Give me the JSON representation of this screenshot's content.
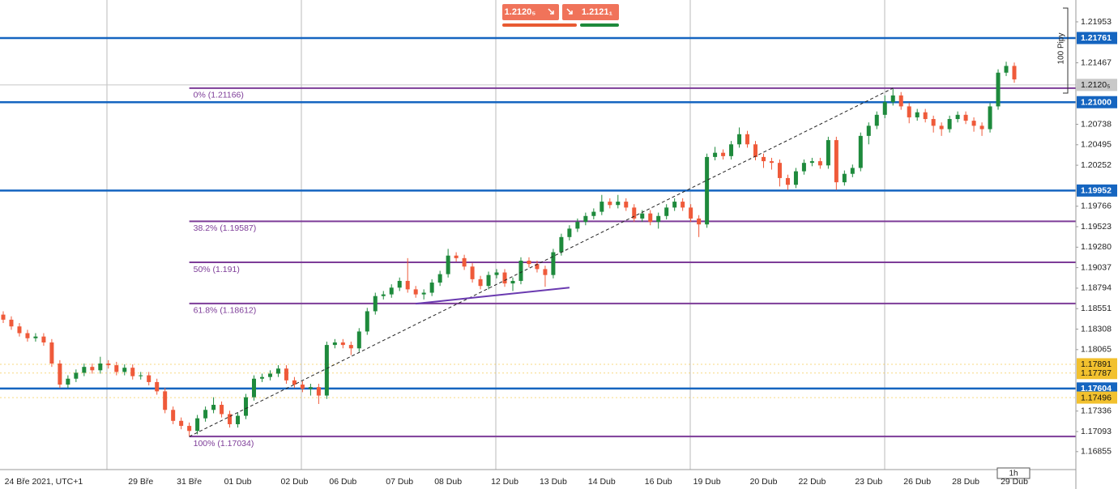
{
  "chart_data": {
    "type": "candlestick",
    "timeframe": "1h",
    "measure": "100 Pipy",
    "quote": {
      "bid": "1.2120₅",
      "ask": "1.2121₁"
    },
    "up_color": "#1e8a3c",
    "down_color": "#ef5a3a",
    "categories": [
      null,
      null,
      null,
      null,
      null,
      "24 Bře 2021, UTC+1",
      null,
      null,
      null,
      null,
      null,
      null,
      null,
      null,
      null,
      null,
      null,
      "29 Bře",
      null,
      null,
      null,
      null,
      null,
      "31 Bře",
      null,
      null,
      null,
      null,
      null,
      "01 Dub",
      null,
      null,
      null,
      null,
      null,
      null,
      "02 Dub",
      null,
      null,
      null,
      null,
      null,
      "06 Dub",
      null,
      null,
      null,
      null,
      null,
      null,
      "07 Dub",
      null,
      null,
      null,
      null,
      null,
      "08 Dub",
      null,
      null,
      null,
      null,
      null,
      null,
      "12 Dub",
      null,
      null,
      null,
      null,
      null,
      "13 Dub",
      null,
      null,
      null,
      null,
      null,
      "14 Dub",
      null,
      null,
      null,
      null,
      null,
      null,
      "16 Dub",
      null,
      null,
      null,
      null,
      null,
      "19 Dub",
      null,
      null,
      null,
      null,
      null,
      null,
      "20 Dub",
      null,
      null,
      null,
      null,
      null,
      "22 Dub",
      null,
      null,
      null,
      null,
      null,
      null,
      "23 Dub",
      null,
      null,
      null,
      null,
      null,
      "26 Dub",
      null,
      null,
      null,
      null,
      null,
      "28 Dub",
      null,
      null,
      null,
      null,
      null,
      "29 Dub"
    ],
    "open": [
      1.1848,
      1.1842,
      1.1834,
      1.1826,
      1.182,
      1.1822,
      1.1815,
      1.179,
      1.1765,
      1.1772,
      1.1779,
      1.1786,
      1.1782,
      1.179,
      1.1788,
      1.178,
      1.1785,
      1.1775,
      1.1776,
      1.1768,
      1.1757,
      1.1735,
      1.1722,
      1.1716,
      1.171,
      1.1725,
      1.1735,
      1.1741,
      1.173,
      1.1718,
      1.1728,
      1.175,
      1.1772,
      1.1774,
      1.1778,
      1.1784,
      1.177,
      1.1765,
      1.176,
      1.1762,
      1.1752,
      1.1812,
      1.1815,
      1.1812,
      1.1808,
      1.1828,
      1.1852,
      1.187,
      1.1872,
      1.188,
      1.1888,
      1.1878,
      1.1872,
      1.1874,
      1.1886,
      1.1896,
      1.1918,
      1.1915,
      1.1905,
      1.189,
      1.1882,
      1.1895,
      1.1898,
      1.1885,
      1.1888,
      1.1912,
      1.1908,
      1.1902,
      1.1895,
      1.1922,
      1.194,
      1.195,
      1.1958,
      1.1965,
      1.197,
      1.1982,
      1.1978,
      1.1982,
      1.1975,
      1.1962,
      1.1968,
      1.1958,
      1.1965,
      1.1975,
      1.1982,
      1.1975,
      1.1962,
      1.1955,
      1.2035,
      1.204,
      1.2036,
      1.205,
      1.2062,
      1.205,
      1.2035,
      1.203,
      1.2028,
      1.201,
      1.2002,
      1.2018,
      1.2028,
      1.203,
      1.2025,
      1.2055,
      1.2005,
      1.2015,
      1.2022,
      1.206,
      1.2072,
      1.2085,
      1.21,
      1.2108,
      1.2095,
      1.2082,
      1.2088,
      1.208,
      1.2072,
      1.2068,
      1.208,
      1.2085,
      1.2078,
      1.2072,
      1.2068,
      1.2095,
      1.2135,
      1.2143
    ],
    "high": [
      1.1852,
      1.1846,
      1.1838,
      1.183,
      1.1826,
      1.1826,
      1.1819,
      1.1794,
      1.1776,
      1.1783,
      1.179,
      1.179,
      1.1798,
      1.1794,
      1.1792,
      1.1789,
      1.1789,
      1.178,
      1.178,
      1.1772,
      1.1761,
      1.1739,
      1.1726,
      1.172,
      1.1729,
      1.1739,
      1.175,
      1.1745,
      1.1734,
      1.1732,
      1.1754,
      1.1776,
      1.1778,
      1.1782,
      1.1788,
      1.1788,
      1.1774,
      1.1769,
      1.1766,
      1.1766,
      1.1816,
      1.1819,
      1.1819,
      1.1816,
      1.1832,
      1.1856,
      1.1874,
      1.1876,
      1.1884,
      1.1892,
      1.1915,
      1.1882,
      1.1878,
      1.189,
      1.19,
      1.1926,
      1.1922,
      1.1919,
      1.1909,
      1.1894,
      1.1899,
      1.1902,
      1.1902,
      1.1892,
      1.1916,
      1.1916,
      1.1912,
      1.1906,
      1.1926,
      1.1944,
      1.1954,
      1.1962,
      1.1969,
      1.1974,
      1.199,
      1.1986,
      1.199,
      1.1986,
      1.1979,
      1.1972,
      1.1972,
      1.1969,
      1.1979,
      1.1986,
      1.1986,
      1.1979,
      1.1966,
      1.2039,
      1.2047,
      1.2044,
      1.2054,
      1.207,
      1.2066,
      1.2054,
      1.2039,
      1.2034,
      1.2032,
      1.2014,
      1.2022,
      1.2032,
      1.2034,
      1.2034,
      1.2059,
      1.2059,
      1.2019,
      1.2026,
      1.2064,
      1.2076,
      1.2089,
      1.2108,
      1.2116,
      1.2112,
      1.2099,
      1.2092,
      1.2092,
      1.2084,
      1.2076,
      1.2084,
      1.2089,
      1.2089,
      1.2082,
      1.2076,
      1.2099,
      1.2139,
      1.2148,
      1.2147
    ],
    "low": [
      1.1838,
      1.183,
      1.1822,
      1.1816,
      1.1816,
      1.1811,
      1.1786,
      1.1761,
      1.1761,
      1.1768,
      1.1775,
      1.1778,
      1.1778,
      1.1784,
      1.1776,
      1.1776,
      1.1771,
      1.1771,
      1.1764,
      1.1753,
      1.1731,
      1.1718,
      1.1712,
      1.17034,
      1.1706,
      1.1721,
      1.1731,
      1.1726,
      1.1714,
      1.1714,
      1.1724,
      1.1746,
      1.1768,
      1.177,
      1.1774,
      1.1766,
      1.1761,
      1.1756,
      1.1752,
      1.1742,
      1.1748,
      1.1808,
      1.1808,
      1.18,
      1.1804,
      1.1824,
      1.1848,
      1.1866,
      1.1868,
      1.1876,
      1.1874,
      1.1868,
      1.1866,
      1.187,
      1.1882,
      1.1892,
      1.1911,
      1.1901,
      1.1886,
      1.1878,
      1.1878,
      1.1891,
      1.1881,
      1.1876,
      1.1884,
      1.1904,
      1.1898,
      1.1881,
      1.1891,
      1.1918,
      1.1936,
      1.1946,
      1.1954,
      1.1961,
      1.1966,
      1.1974,
      1.1974,
      1.1971,
      1.1958,
      1.1958,
      1.1954,
      1.195,
      1.1961,
      1.1971,
      1.1971,
      1.1958,
      1.194,
      1.1951,
      1.2031,
      1.2032,
      1.2032,
      1.2046,
      1.2046,
      1.2031,
      1.2022,
      1.202,
      1.2,
      1.1996,
      1.1998,
      1.2014,
      1.2024,
      1.2021,
      1.2021,
      1.1996,
      1.2001,
      1.2011,
      1.2018,
      1.205,
      1.2068,
      1.2081,
      1.2096,
      1.2091,
      1.2075,
      1.2078,
      1.2076,
      1.2064,
      1.206,
      1.2064,
      1.2076,
      1.2074,
      1.2065,
      1.206,
      1.2064,
      1.2091,
      1.2131,
      1.2123
    ],
    "close": [
      1.1842,
      1.1834,
      1.1826,
      1.182,
      1.1822,
      1.1815,
      1.179,
      1.1765,
      1.1772,
      1.1779,
      1.1786,
      1.1782,
      1.179,
      1.1788,
      1.178,
      1.1785,
      1.1775,
      1.1776,
      1.1768,
      1.1757,
      1.1735,
      1.1722,
      1.1716,
      1.171,
      1.1725,
      1.1735,
      1.1741,
      1.173,
      1.1718,
      1.1728,
      1.175,
      1.1772,
      1.1774,
      1.1778,
      1.1784,
      1.177,
      1.1765,
      1.176,
      1.1762,
      1.1752,
      1.1812,
      1.1815,
      1.1812,
      1.1808,
      1.1828,
      1.1852,
      1.187,
      1.1872,
      1.188,
      1.1888,
      1.1878,
      1.1872,
      1.1874,
      1.1886,
      1.1896,
      1.1918,
      1.1915,
      1.1905,
      1.189,
      1.1882,
      1.1895,
      1.1898,
      1.1885,
      1.1888,
      1.1912,
      1.1908,
      1.1902,
      1.1895,
      1.1922,
      1.194,
      1.195,
      1.1958,
      1.1965,
      1.197,
      1.1982,
      1.1978,
      1.1982,
      1.1975,
      1.1962,
      1.1968,
      1.1958,
      1.1965,
      1.1975,
      1.1982,
      1.1975,
      1.1962,
      1.1955,
      1.2035,
      1.204,
      1.2036,
      1.205,
      1.2062,
      1.205,
      1.2035,
      1.203,
      1.2028,
      1.201,
      1.2002,
      1.2018,
      1.2028,
      1.203,
      1.2025,
      1.2055,
      1.2005,
      1.2015,
      1.2022,
      1.206,
      1.2072,
      1.2085,
      1.21,
      1.2108,
      1.2095,
      1.2082,
      1.2088,
      1.208,
      1.2072,
      1.2068,
      1.208,
      1.2085,
      1.2078,
      1.2072,
      1.2068,
      1.2095,
      1.2135,
      1.2143,
      1.2127
    ],
    "ylim": [
      1.16642,
      1.22212
    ],
    "yticks": [
      1.21953,
      1.21467,
      1.20738,
      1.20495,
      1.20252,
      1.19766,
      1.19523,
      {
        "value": 1.1928,
        "label": "1.19280"
      },
      1.19037,
      1.18794,
      1.18551,
      1.18308,
      1.18065,
      1.17336,
      1.17093,
      1.16855
    ],
    "price_lines": [
      {
        "value": 1.21761,
        "color": "#1565c0",
        "style": "solid"
      },
      {
        "value": 1.21205,
        "label": "1.2120₅",
        "color": "#c8c8c8",
        "style": "solid"
      },
      {
        "value": {
          "value": 1.21,
          "label": "1.21000"
        },
        "color": "#1565c0",
        "style": "solid"
      },
      {
        "value": 1.19952,
        "color": "#1565c0",
        "style": "solid"
      },
      {
        "value": 1.17891,
        "color": "#f2c12e",
        "style": "dotted"
      },
      {
        "value": 1.17787,
        "color": "#f2c12e",
        "style": "dotted"
      },
      {
        "value": 1.17604,
        "color": "#1565c0",
        "style": "solid"
      },
      {
        "value": 1.17496,
        "color": "#f2c12e",
        "style": "dotted"
      }
    ],
    "fib_levels": [
      {
        "value": 1.21166,
        "label": "0% (1.21166)"
      },
      {
        "value": 1.19587,
        "label": "38.2% (1.19587)"
      },
      {
        "value": 1.191,
        "label": "50% (1.191)"
      },
      {
        "value": 1.18612,
        "label": "61.8% (1.18612)"
      },
      {
        "value": 1.17034,
        "label": "100% (1.17034)"
      }
    ],
    "fib_color": "#7d3c98",
    "trendlines": [
      {
        "x": [
          23,
          110
        ],
        "y": [
          1.17034,
          1.21166
        ],
        "color": "#222",
        "style": "dashed"
      },
      {
        "x": [
          51,
          70
        ],
        "y": [
          1.1861,
          1.188
        ],
        "color": "#6a3ab0",
        "style": "solid"
      }
    ]
  }
}
